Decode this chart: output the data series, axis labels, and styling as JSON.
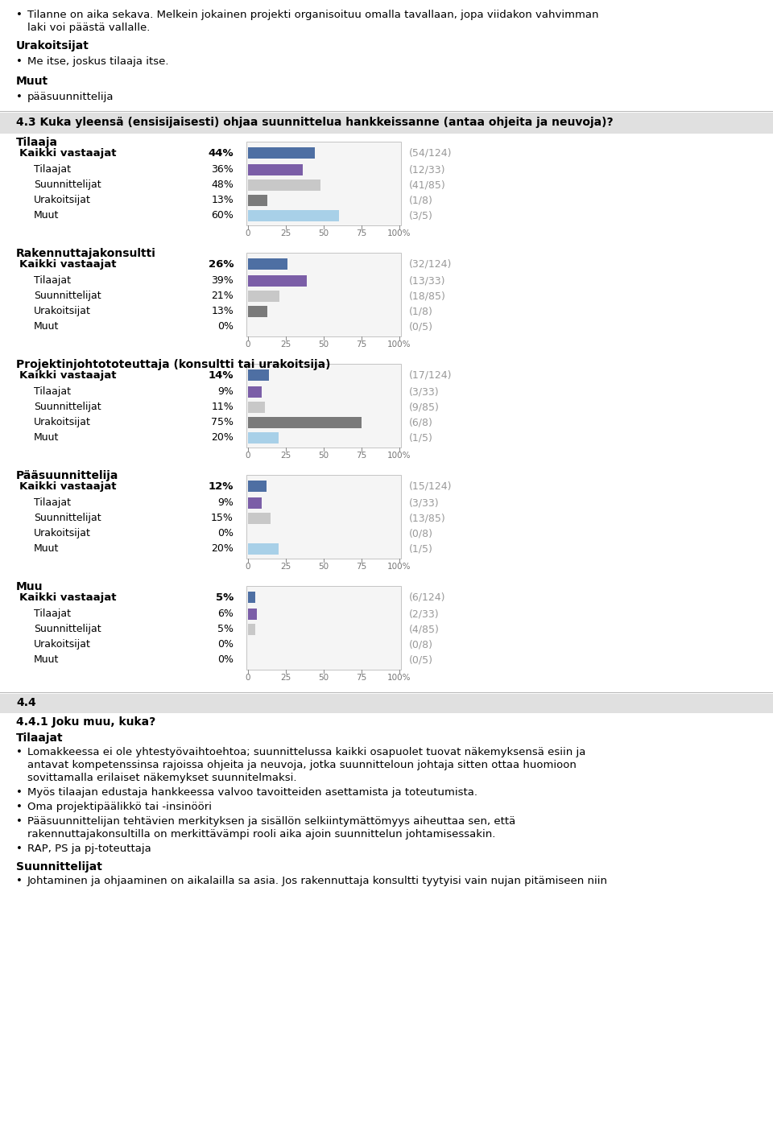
{
  "section_title": "4.3 Kuka yleensä (ensisijaisesti) ohjaa suunnittelua hankkeissanne (antaa ohjeita ja neuvoja)?",
  "groups": [
    {
      "group_label": "Tilaaja",
      "rows": [
        {
          "label": "Kaikki vastaajat",
          "bold": true,
          "pct": 44,
          "fraction": "54/124",
          "color": "#4e6fa3"
        },
        {
          "label": "Tilaajat",
          "bold": false,
          "pct": 36,
          "fraction": "12/33",
          "color": "#7b5ea7"
        },
        {
          "label": "Suunnittelijat",
          "bold": false,
          "pct": 48,
          "fraction": "41/85",
          "color": "#c8c8c8"
        },
        {
          "label": "Urakoitsijat",
          "bold": false,
          "pct": 13,
          "fraction": "1/8",
          "color": "#7a7a7a"
        },
        {
          "label": "Muut",
          "bold": false,
          "pct": 60,
          "fraction": "3/5",
          "color": "#a8d0e8"
        }
      ]
    },
    {
      "group_label": "Rakennuttajakonsultti",
      "rows": [
        {
          "label": "Kaikki vastaajat",
          "bold": true,
          "pct": 26,
          "fraction": "32/124",
          "color": "#4e6fa3"
        },
        {
          "label": "Tilaajat",
          "bold": false,
          "pct": 39,
          "fraction": "13/33",
          "color": "#7b5ea7"
        },
        {
          "label": "Suunnittelijat",
          "bold": false,
          "pct": 21,
          "fraction": "18/85",
          "color": "#c8c8c8"
        },
        {
          "label": "Urakoitsijat",
          "bold": false,
          "pct": 13,
          "fraction": "1/8",
          "color": "#7a7a7a"
        },
        {
          "label": "Muut",
          "bold": false,
          "pct": 0,
          "fraction": "0/5",
          "color": "#a8d0e8"
        }
      ]
    },
    {
      "group_label": "Projektinjohtototeuttaja (konsultti tai urakoitsija)",
      "rows": [
        {
          "label": "Kaikki vastaajat",
          "bold": true,
          "pct": 14,
          "fraction": "17/124",
          "color": "#4e6fa3"
        },
        {
          "label": "Tilaajat",
          "bold": false,
          "pct": 9,
          "fraction": "3/33",
          "color": "#7b5ea7"
        },
        {
          "label": "Suunnittelijat",
          "bold": false,
          "pct": 11,
          "fraction": "9/85",
          "color": "#c8c8c8"
        },
        {
          "label": "Urakoitsijat",
          "bold": false,
          "pct": 75,
          "fraction": "6/8",
          "color": "#7a7a7a"
        },
        {
          "label": "Muut",
          "bold": false,
          "pct": 20,
          "fraction": "1/5",
          "color": "#a8d0e8"
        }
      ]
    },
    {
      "group_label": "Pääsuunnittelija",
      "rows": [
        {
          "label": "Kaikki vastaajat",
          "bold": true,
          "pct": 12,
          "fraction": "15/124",
          "color": "#4e6fa3"
        },
        {
          "label": "Tilaajat",
          "bold": false,
          "pct": 9,
          "fraction": "3/33",
          "color": "#7b5ea7"
        },
        {
          "label": "Suunnittelijat",
          "bold": false,
          "pct": 15,
          "fraction": "13/85",
          "color": "#c8c8c8"
        },
        {
          "label": "Urakoitsijat",
          "bold": false,
          "pct": 0,
          "fraction": "0/8",
          "color": "#7a7a7a"
        },
        {
          "label": "Muut",
          "bold": false,
          "pct": 20,
          "fraction": "1/5",
          "color": "#a8d0e8"
        }
      ]
    },
    {
      "group_label": "Muu",
      "rows": [
        {
          "label": "Kaikki vastaajat",
          "bold": true,
          "pct": 5,
          "fraction": "6/124",
          "color": "#4e6fa3"
        },
        {
          "label": "Tilaajat",
          "bold": false,
          "pct": 6,
          "fraction": "2/33",
          "color": "#7b5ea7"
        },
        {
          "label": "Suunnittelijat",
          "bold": false,
          "pct": 5,
          "fraction": "4/85",
          "color": "#c8c8c8"
        },
        {
          "label": "Urakoitsijat",
          "bold": false,
          "pct": 0,
          "fraction": "0/8",
          "color": "#7a7a7a"
        },
        {
          "label": "Muut",
          "bold": false,
          "pct": 0,
          "fraction": "0/5",
          "color": "#a8d0e8"
        }
      ]
    }
  ],
  "footer_title": "4.4",
  "footer_subsection": "4.4.1 Joku muu, kuka?",
  "footer_tilaajat_label": "Tilaajat",
  "footer_suunnittelijat_label": "Suunnittelijat",
  "footer_bullets_tilaajat": [
    [
      "Lomakkeessa ei ole yhtestyövaihtoehtoa; suunnittelussa kaikki osapuolet tuovat näkemyksensä esiin ja",
      "antavat kompetenssinsa rajoissa ohjeita ja neuvoja, jotka suunnitteloun johtaja sitten ottaa huomioon",
      "sovittamalla erilaiset näkemykset suunnitelmaksi."
    ],
    [
      "Myös tilaajan edustaja hankkeessa valvoo tavoitteiden asettamista ja toteutumista."
    ],
    [
      "Oma projektipäälikkö tai -insinööri"
    ],
    [
      "Pääsuunnittelijan tehtävien merkityksen ja sisällön selkiintymättömyys aiheuttaa sen, että",
      "rakennuttajakonsultilla on merkittävämpi rooli aika ajoin suunnittelun johtamisessakin."
    ],
    [
      "RAP, PS ja pj-toteuttaja"
    ]
  ],
  "footer_bullets_suunnittelijat": [
    [
      "Johtaminen ja ohjaaminen on aikalailla sa asia. Jos rakennuttaja konsultti tyytyisi vain nujan pitämiseen niin"
    ]
  ],
  "x_axis_ticks": [
    0,
    25,
    50,
    75,
    100
  ],
  "x_axis_tick_labels": [
    "0",
    "25",
    "50",
    "75",
    "100%"
  ]
}
